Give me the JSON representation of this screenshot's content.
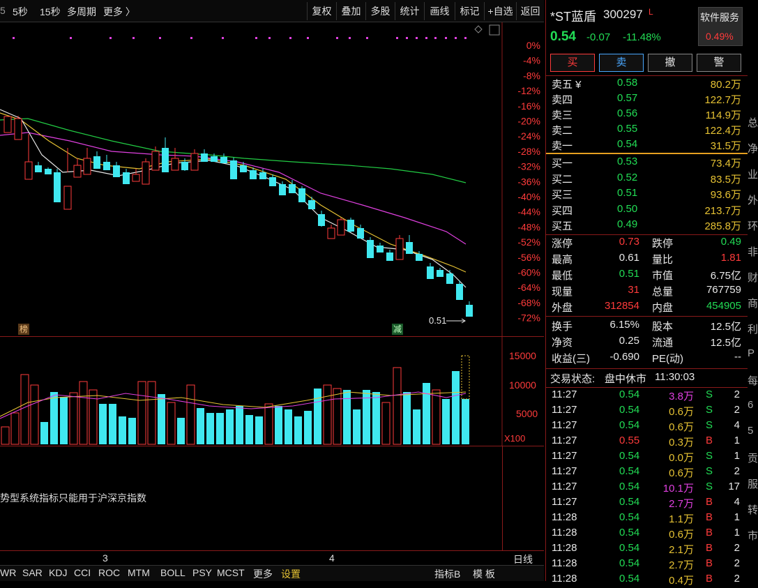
{
  "toolbar": {
    "periods": [
      "5秒",
      "15秒",
      "多周期",
      "更多 〉"
    ],
    "partial_left": "5",
    "buttons": [
      "复权",
      "叠加",
      "多股",
      "统计",
      "画线",
      "标记",
      "+自选",
      "返回"
    ]
  },
  "main_chart": {
    "y_axis_labels": [
      "0%",
      "-4%",
      "-8%",
      "-12%",
      "-16%",
      "-20%",
      "-24%",
      "-28%",
      "-32%",
      "-36%",
      "-40%",
      "-44%",
      "-48%",
      "-52%",
      "-56%",
      "-60%",
      "-64%",
      "-68%",
      "-72%"
    ],
    "last_price_marker": "0.51",
    "tag_left": "榜",
    "tag_right": "减",
    "colors": {
      "up": "#ff3b3b",
      "down": "#40e8f0",
      "ma5": "#e8e8e8",
      "ma10": "#e6c233",
      "ma20": "#e040e0",
      "ma60": "#22cc44"
    }
  },
  "volume_chart": {
    "y_axis_labels": [
      "15000",
      "10000",
      "5000"
    ],
    "unit": "X100"
  },
  "indicator_panel": {
    "message": "势型系统指标只能用于沪深京指数"
  },
  "x_axis": {
    "labels": [
      "3",
      "4"
    ],
    "mode_label": "日线"
  },
  "bottom_tabs": [
    "WR",
    "SAR",
    "KDJ",
    "CCI",
    "ROC",
    "MTM",
    "BOLL",
    "PSY",
    "MCST",
    "更多",
    "设置"
  ],
  "bottom_right_tabs": [
    "指标B",
    "模 板"
  ],
  "stock": {
    "name": "*ST蓝盾",
    "code": "300297",
    "flag": "L",
    "price": "0.54",
    "change": "-0.07",
    "change_pct": "-11.48%",
    "service_label": "软件服务",
    "service_pct": "0.49%"
  },
  "trade_buttons": [
    "买",
    "卖",
    "撤",
    "警"
  ],
  "asks": [
    {
      "label": "卖五 ¥",
      "price": "0.58",
      "vol": "80.2万"
    },
    {
      "label": "卖四",
      "price": "0.57",
      "vol": "122.7万"
    },
    {
      "label": "卖三",
      "price": "0.56",
      "vol": "114.9万"
    },
    {
      "label": "卖二",
      "price": "0.55",
      "vol": "122.4万"
    },
    {
      "label": "卖一",
      "price": "0.54",
      "vol": "31.5万"
    }
  ],
  "bids": [
    {
      "label": "买一",
      "price": "0.53",
      "vol": "73.4万"
    },
    {
      "label": "买二",
      "price": "0.52",
      "vol": "83.5万"
    },
    {
      "label": "买三",
      "price": "0.51",
      "vol": "93.6万"
    },
    {
      "label": "买四",
      "price": "0.50",
      "vol": "213.7万"
    },
    {
      "label": "买五",
      "price": "0.49",
      "vol": "285.8万"
    }
  ],
  "stats1": [
    {
      "l1": "涨停",
      "v1": "0.73",
      "c1": "red",
      "l2": "跌停",
      "v2": "0.49",
      "c2": "green"
    },
    {
      "l1": "最高",
      "v1": "0.61",
      "c1": "white",
      "l2": "量比",
      "v2": "1.81",
      "c2": "red"
    },
    {
      "l1": "最低",
      "v1": "0.51",
      "c1": "green",
      "l2": "市值",
      "v2": "6.75亿",
      "c2": "white"
    },
    {
      "l1": "现量",
      "v1": "31",
      "c1": "red",
      "l2": "总量",
      "v2": "767759",
      "c2": "white"
    },
    {
      "l1": "外盘",
      "v1": "312854",
      "c1": "red",
      "l2": "内盘",
      "v2": "454905",
      "c2": "green"
    }
  ],
  "stats2": [
    {
      "l1": "换手",
      "v1": "6.15%",
      "l2": "股本",
      "v2": "12.5亿"
    },
    {
      "l1": "净资",
      "v1": "0.25",
      "l2": "流通",
      "v2": "12.5亿"
    },
    {
      "l1": "收益(三)",
      "v1": "-0.690",
      "l2": "PE(动)",
      "v2": "--"
    }
  ],
  "trade_status": {
    "label": "交易状态:",
    "state": "盘中休市",
    "time": "11:30:03"
  },
  "ticks": [
    {
      "time": "11:27",
      "price": "0.54",
      "vol": "3.8万",
      "side": "S",
      "n": "2",
      "hl": true
    },
    {
      "time": "11:27",
      "price": "0.54",
      "vol": "0.6万",
      "side": "S",
      "n": "2"
    },
    {
      "time": "11:27",
      "price": "0.54",
      "vol": "0.6万",
      "side": "S",
      "n": "4"
    },
    {
      "time": "11:27",
      "price": "0.55",
      "vol": "0.3万",
      "side": "B",
      "n": "1"
    },
    {
      "time": "11:27",
      "price": "0.54",
      "vol": "0.0万",
      "side": "S",
      "n": "1"
    },
    {
      "time": "11:27",
      "price": "0.54",
      "vol": "0.6万",
      "side": "S",
      "n": "2"
    },
    {
      "time": "11:27",
      "price": "0.54",
      "vol": "10.1万",
      "side": "S",
      "n": "17",
      "hl": true
    },
    {
      "time": "11:27",
      "price": "0.54",
      "vol": "2.7万",
      "side": "B",
      "n": "4",
      "hl": true
    },
    {
      "time": "11:28",
      "price": "0.54",
      "vol": "1.1万",
      "side": "B",
      "n": "1"
    },
    {
      "time": "11:28",
      "price": "0.54",
      "vol": "0.6万",
      "side": "B",
      "n": "1"
    },
    {
      "time": "11:28",
      "price": "0.54",
      "vol": "2.1万",
      "side": "B",
      "n": "2"
    },
    {
      "time": "11:28",
      "price": "0.54",
      "vol": "2.7万",
      "side": "B",
      "n": "2"
    },
    {
      "time": "11:28",
      "price": "0.54",
      "vol": "0.4万",
      "side": "B",
      "n": "2"
    }
  ],
  "edge_chars": [
    "总",
    "净",
    "业",
    "外",
    "环",
    "非",
    "财",
    "商",
    "利",
    "P",
    "每",
    "6",
    "5",
    "贡",
    "服",
    "转",
    "市"
  ]
}
